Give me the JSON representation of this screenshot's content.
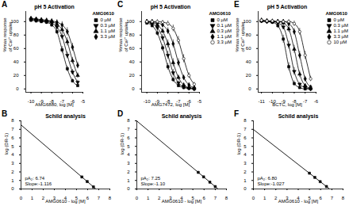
{
  "chart_data": [
    {
      "type": "line",
      "panel": "A",
      "title": "pH 5 Activation",
      "xlabel": "AMG6880, log [M]",
      "ylabel": "%max response\nof Ca²⁺ uptake",
      "legend_title": "AMG0610",
      "legend": "top-right",
      "x": [
        -10,
        -9.5,
        -9,
        -8.5,
        -8,
        -7.5,
        -7,
        -6.5,
        -6,
        -5.5
      ],
      "xlim": [
        -10.5,
        -5
      ],
      "xticks": [
        -10,
        -9,
        -8,
        -7,
        -6,
        -5
      ],
      "ylim": [
        -5,
        115
      ],
      "yticks": [
        0,
        20,
        40,
        60,
        80,
        100
      ],
      "series": [
        {
          "name": "0 µM",
          "color": "#000000",
          "marker": "square",
          "values": [
            102,
            101,
            100,
            99,
            95,
            85,
            58,
            30,
            12,
            5
          ],
          "errors": [
            2,
            2,
            2,
            3,
            3,
            4,
            5,
            4,
            3,
            2
          ]
        },
        {
          "name": "0.3 µM",
          "color": "#000000",
          "marker": "triangle-down",
          "values": [
            103,
            102,
            101,
            100,
            98,
            92,
            78,
            50,
            25,
            10
          ],
          "errors": [
            2,
            2,
            2,
            3,
            3,
            4,
            5,
            5,
            4,
            3
          ]
        },
        {
          "name": "1.1 µM",
          "color": "#000000",
          "marker": "triangle-up",
          "values": [
            104,
            103,
            102,
            101,
            100,
            96,
            88,
            70,
            42,
            20
          ],
          "errors": [
            2,
            2,
            2,
            3,
            3,
            4,
            5,
            6,
            5,
            4
          ]
        },
        {
          "name": "3.3 µM",
          "color": "#000000",
          "marker": "diamond",
          "values": [
            105,
            104,
            103,
            102,
            101,
            99,
            95,
            85,
            62,
            35
          ],
          "errors": [
            2,
            2,
            2,
            3,
            3,
            4,
            5,
            6,
            6,
            5
          ]
        }
      ]
    },
    {
      "type": "scatter",
      "panel": "B",
      "title": "Schild analysis",
      "xlabel": "AMG0610 - log [M]",
      "ylabel": "log (DR-1)",
      "x": [
        6.52,
        5.96,
        5.48
      ],
      "values": [
        0.25,
        0.87,
        1.41
      ],
      "color": "#000000",
      "marker": "square",
      "fit": {
        "x": [
          0,
          6.74
        ],
        "values": [
          7.52,
          0
        ]
      },
      "annotation": [
        "pA₂: 6.74",
        "Slope:-1.116"
      ],
      "xlim": [
        0,
        8
      ],
      "xticks": [
        0,
        1,
        2,
        3,
        4,
        5,
        6,
        7,
        8
      ],
      "ylim": [
        0,
        8
      ],
      "yticks": [
        0,
        1,
        2,
        3,
        4,
        5,
        6,
        7,
        8
      ]
    },
    {
      "type": "line",
      "panel": "C",
      "title": "pH 5 Activation",
      "xlabel": "AMG7472, log [M]",
      "ylabel": "%max response\nof Ca²⁺ uptake",
      "legend_title": "AMG0610",
      "legend": "top-right",
      "x": [
        -10,
        -9.5,
        -9,
        -8.5,
        -8,
        -7.5,
        -7,
        -6.5,
        -6,
        -5.5
      ],
      "xlim": [
        -10.5,
        -5
      ],
      "xticks": [
        -10,
        -9,
        -8,
        -7,
        -6,
        -5
      ],
      "ylim": [
        -5,
        115
      ],
      "yticks": [
        0,
        20,
        40,
        60,
        80,
        100
      ],
      "series": [
        {
          "name": "0 µM",
          "color": "#000000",
          "marker": "square",
          "values": [
            98,
            94,
            83,
            61,
            33,
            14,
            5,
            2,
            1,
            0
          ],
          "errors": [
            3,
            3,
            4,
            5,
            5,
            4,
            3,
            2,
            2,
            2
          ]
        },
        {
          "name": "0.1 µM",
          "color": "#000000",
          "marker": "triangle-down",
          "values": [
            99,
            97,
            91,
            76,
            50,
            24,
            9,
            3,
            1,
            0
          ],
          "errors": [
            3,
            3,
            4,
            5,
            6,
            5,
            3,
            2,
            2,
            2
          ]
        },
        {
          "name": "0.3 µM",
          "color": "#000000",
          "marker": "triangle-up",
          "values": [
            100,
            99,
            95,
            86,
            67,
            39,
            17,
            6,
            2,
            1
          ],
          "errors": [
            3,
            3,
            3,
            4,
            6,
            6,
            4,
            3,
            2,
            2
          ]
        },
        {
          "name": "1.1 µM",
          "color": "#000000",
          "marker": "diamond",
          "values": [
            100,
            100,
            98,
            95,
            86,
            67,
            39,
            17,
            6,
            2
          ],
          "errors": [
            3,
            3,
            3,
            3,
            5,
            6,
            6,
            4,
            3,
            2
          ]
        },
        {
          "name": "3.3 µM",
          "color": "#000000",
          "marker": "circle-open",
          "values": [
            100,
            100,
            100,
            99,
            97,
            90,
            72,
            45,
            20,
            7
          ],
          "errors": [
            3,
            3,
            3,
            3,
            4,
            5,
            6,
            6,
            4,
            3
          ]
        }
      ]
    },
    {
      "type": "scatter",
      "panel": "D",
      "title": "Schild analysis",
      "xlabel": "AMG0610 - log [M]",
      "ylabel": "log (DR-1)",
      "x": [
        7,
        6.52,
        5.96,
        5.48
      ],
      "values": [
        0.28,
        0.8,
        1.42,
        1.95
      ],
      "color": "#000000",
      "marker": "square",
      "fit": {
        "x": [
          0,
          7.25
        ],
        "values": [
          7.98,
          0
        ]
      },
      "annotation": [
        "pA₂: 7.25",
        "Slope:-1.10"
      ],
      "xlim": [
        0,
        8
      ],
      "xticks": [
        0,
        1,
        2,
        3,
        4,
        5,
        6,
        7,
        8
      ],
      "ylim": [
        0,
        8
      ],
      "yticks": [
        0,
        1,
        2,
        3,
        4,
        5,
        6,
        7,
        8
      ]
    },
    {
      "type": "line",
      "panel": "E",
      "title": "pH 5 Activation",
      "xlabel": "BCTC, log [M]",
      "ylabel": "%max response\nof Ca²⁺ uptake",
      "legend_title": "AMG0610",
      "legend": "top-right",
      "x": [
        -11,
        -10.5,
        -10,
        -9.5,
        -9,
        -8.5,
        -8,
        -7.5,
        -7,
        -6.5
      ],
      "xlim": [
        -11.3,
        -6
      ],
      "xticks": [
        -11,
        -10,
        -9,
        -8,
        -7,
        -6
      ],
      "ylim": [
        -5,
        115
      ],
      "yticks": [
        0,
        20,
        40,
        60,
        80,
        100
      ],
      "series": [
        {
          "name": "0 µM",
          "color": "#000000",
          "marker": "square",
          "values": [
            101,
            100,
            99,
            94,
            74,
            33,
            8,
            2,
            0,
            0
          ],
          "errors": [
            3,
            3,
            3,
            4,
            6,
            6,
            4,
            2,
            2,
            2
          ]
        },
        {
          "name": "0.3 µM",
          "color": "#000000",
          "marker": "triangle-down",
          "values": [
            101,
            100,
            100,
            98,
            92,
            65,
            26,
            7,
            2,
            0
          ],
          "errors": [
            3,
            3,
            3,
            3,
            4,
            6,
            6,
            3,
            2,
            2
          ]
        },
        {
          "name": "1.1 µM",
          "color": "#000000",
          "marker": "triangle-up",
          "values": [
            101,
            101,
            100,
            100,
            98,
            89,
            59,
            22,
            5,
            1
          ],
          "errors": [
            3,
            3,
            3,
            3,
            3,
            5,
            6,
            5,
            3,
            2
          ]
        },
        {
          "name": "3.3 µM",
          "color": "#000000",
          "marker": "diamond",
          "values": [
            102,
            101,
            100,
            100,
            100,
            97,
            85,
            50,
            15,
            3
          ],
          "errors": [
            3,
            3,
            3,
            3,
            3,
            4,
            5,
            6,
            4,
            2
          ]
        },
        {
          "name": "10 µM",
          "color": "#000000",
          "marker": "circle-open",
          "values": [
            102,
            101,
            101,
            100,
            100,
            100,
            97,
            85,
            50,
            15
          ],
          "errors": [
            3,
            3,
            3,
            3,
            3,
            3,
            4,
            5,
            6,
            4
          ]
        }
      ]
    },
    {
      "type": "scatter",
      "panel": "F",
      "title": "Schild analysis",
      "xlabel": "AMG0610 - log [M]",
      "ylabel": "log (DR-1)",
      "x": [
        6.52,
        5.96,
        5.48,
        5
      ],
      "values": [
        0.29,
        0.86,
        1.36,
        1.85
      ],
      "color": "#000000",
      "marker": "square",
      "fit": {
        "x": [
          0,
          6.8
        ],
        "values": [
          6.98,
          0
        ]
      },
      "annotation": [
        "pA₂: 6.80",
        "Slope:-1.027"
      ],
      "xlim": [
        0,
        8
      ],
      "xticks": [
        0,
        1,
        2,
        3,
        4,
        5,
        6,
        7,
        8
      ],
      "ylim": [
        0,
        8
      ],
      "yticks": [
        0,
        1,
        2,
        3,
        4,
        5,
        6,
        7,
        8
      ]
    }
  ]
}
